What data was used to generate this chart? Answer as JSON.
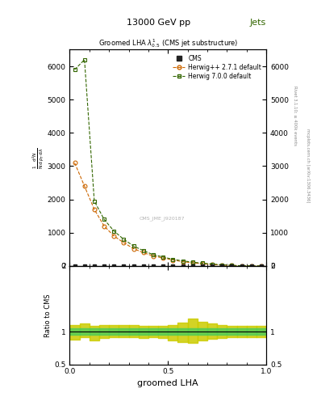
{
  "title_top": "13000 GeV pp",
  "title_right": "Jets",
  "plot_title": "Groomed LHA $\\lambda^{1}_{0.5}$ (CMS jet substructure)",
  "right_label_top": "Rivet 3.1.10; ≥ 400k events",
  "right_label_bot": "mcplots.cern.ch [arXiv:1306.3436]",
  "watermark": "CMS_JME_J920187",
  "xlabel": "groomed LHA",
  "cms_x": [
    0.025,
    0.075,
    0.125,
    0.175,
    0.225,
    0.275,
    0.325,
    0.375,
    0.425,
    0.475,
    0.525,
    0.575,
    0.625,
    0.675,
    0.725,
    0.775,
    0.825,
    0.875,
    0.925,
    0.975
  ],
  "cms_y": [
    0,
    0,
    0,
    0,
    0,
    0,
    0,
    0,
    0,
    0,
    0,
    0,
    0,
    0,
    0,
    0,
    0,
    0,
    0,
    0
  ],
  "herwig271_x": [
    0.025,
    0.075,
    0.125,
    0.175,
    0.225,
    0.275,
    0.325,
    0.375,
    0.425,
    0.475,
    0.525,
    0.575,
    0.625,
    0.675,
    0.725,
    0.775,
    0.825,
    0.875,
    0.925,
    0.975
  ],
  "herwig271_y": [
    3100,
    2400,
    1700,
    1200,
    900,
    700,
    520,
    400,
    300,
    240,
    180,
    130,
    95,
    68,
    45,
    28,
    16,
    9,
    4,
    1
  ],
  "herwig700_x": [
    0.025,
    0.075,
    0.125,
    0.175,
    0.225,
    0.275,
    0.325,
    0.375,
    0.425,
    0.475,
    0.525,
    0.575,
    0.625,
    0.675,
    0.725,
    0.775,
    0.825,
    0.875,
    0.925,
    0.975
  ],
  "herwig700_y": [
    5900,
    6200,
    1950,
    1400,
    1050,
    800,
    600,
    460,
    340,
    270,
    200,
    155,
    115,
    85,
    58,
    35,
    18,
    9,
    4,
    1
  ],
  "ylim_main": [
    0,
    6500
  ],
  "xlim": [
    0,
    1
  ],
  "ratio_ylim": [
    0.5,
    2.0
  ],
  "herwig271_color": "#cc6600",
  "herwig700_color": "#336600",
  "cms_color": "#222222",
  "ratio_green_color": "#55cc55",
  "ratio_yellow_color": "#cccc00"
}
